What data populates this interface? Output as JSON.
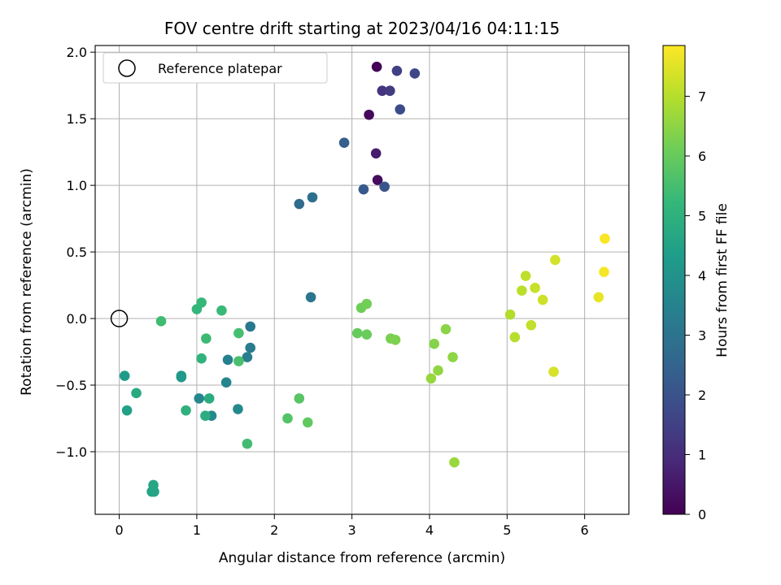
{
  "chart_data": {
    "type": "scatter",
    "title": "FOV centre drift starting at 2023/04/16 04:11:15",
    "xlabel": "Angular distance from reference (arcmin)",
    "ylabel": "Rotation from reference (arcmin)",
    "xlim": [
      -0.31,
      6.57
    ],
    "ylim": [
      -1.47,
      2.05
    ],
    "xticks": [
      0,
      1,
      2,
      3,
      4,
      5,
      6
    ],
    "xtick_labels": [
      "0",
      "1",
      "2",
      "3",
      "4",
      "5",
      "6"
    ],
    "yticks": [
      -1.0,
      -0.5,
      0.0,
      0.5,
      1.0,
      1.5,
      2.0
    ],
    "ytick_labels": [
      "−1.0",
      "−0.5",
      "0.0",
      "0.5",
      "1.0",
      "1.5",
      "2.0"
    ],
    "grid": true,
    "legend": {
      "position": "top-left",
      "entries": [
        "Reference platepar"
      ]
    },
    "reference_point": {
      "x": 0.0,
      "y": 0.0
    },
    "colorbar": {
      "label": "Hours from first FF file",
      "colormap": "viridis",
      "range": [
        0,
        7.85
      ],
      "ticks": [
        0,
        1,
        2,
        3,
        4,
        5,
        6,
        7
      ],
      "tick_labels": [
        "0",
        "1",
        "2",
        "3",
        "4",
        "5",
        "6",
        "7"
      ]
    },
    "points": [
      {
        "x": 3.32,
        "y": 1.89,
        "hours": 0.05
      },
      {
        "x": 3.22,
        "y": 1.53,
        "hours": 0.15
      },
      {
        "x": 3.33,
        "y": 1.04,
        "hours": 0.25
      },
      {
        "x": 3.31,
        "y": 1.24,
        "hours": 0.6
      },
      {
        "x": 3.39,
        "y": 1.71,
        "hours": 1.2
      },
      {
        "x": 3.49,
        "y": 1.71,
        "hours": 1.35
      },
      {
        "x": 3.58,
        "y": 1.86,
        "hours": 1.5
      },
      {
        "x": 3.81,
        "y": 1.84,
        "hours": 1.65
      },
      {
        "x": 3.62,
        "y": 1.57,
        "hours": 1.8
      },
      {
        "x": 3.42,
        "y": 0.99,
        "hours": 2.05
      },
      {
        "x": 3.15,
        "y": 0.97,
        "hours": 2.2
      },
      {
        "x": 2.9,
        "y": 1.32,
        "hours": 2.35
      },
      {
        "x": 2.32,
        "y": 0.86,
        "hours": 2.75
      },
      {
        "x": 2.49,
        "y": 0.91,
        "hours": 2.9
      },
      {
        "x": 2.47,
        "y": 0.16,
        "hours": 3.05
      },
      {
        "x": 1.69,
        "y": -0.06,
        "hours": 3.15
      },
      {
        "x": 1.69,
        "y": -0.22,
        "hours": 3.25
      },
      {
        "x": 1.65,
        "y": -0.29,
        "hours": 3.35
      },
      {
        "x": 1.4,
        "y": -0.31,
        "hours": 3.45
      },
      {
        "x": 1.38,
        "y": -0.48,
        "hours": 3.55
      },
      {
        "x": 1.03,
        "y": -0.6,
        "hours": 3.65
      },
      {
        "x": 1.19,
        "y": -0.73,
        "hours": 3.75
      },
      {
        "x": 1.53,
        "y": -0.68,
        "hours": 3.7
      },
      {
        "x": 0.8,
        "y": -0.43,
        "hours": 4.2
      },
      {
        "x": 0.8,
        "y": -0.44,
        "hours": 4.25
      },
      {
        "x": 0.07,
        "y": -0.43,
        "hours": 4.3
      },
      {
        "x": 0.1,
        "y": -0.69,
        "hours": 4.45
      },
      {
        "x": 0.42,
        "y": -1.3,
        "hours": 4.55
      },
      {
        "x": 0.45,
        "y": -1.3,
        "hours": 4.6
      },
      {
        "x": 0.44,
        "y": -1.25,
        "hours": 4.65
      },
      {
        "x": 0.22,
        "y": -0.56,
        "hours": 4.75
      },
      {
        "x": 1.16,
        "y": -0.6,
        "hours": 4.85
      },
      {
        "x": 1.11,
        "y": -0.73,
        "hours": 4.9
      },
      {
        "x": 0.86,
        "y": -0.69,
        "hours": 5.0
      },
      {
        "x": 1.06,
        "y": -0.3,
        "hours": 5.1
      },
      {
        "x": 1.0,
        "y": 0.07,
        "hours": 5.15
      },
      {
        "x": 1.06,
        "y": 0.12,
        "hours": 5.25
      },
      {
        "x": 1.32,
        "y": 0.06,
        "hours": 5.3
      },
      {
        "x": 1.12,
        "y": -0.15,
        "hours": 5.35
      },
      {
        "x": 0.54,
        "y": -0.02,
        "hours": 5.4
      },
      {
        "x": 1.65,
        "y": -0.94,
        "hours": 5.45
      },
      {
        "x": 1.54,
        "y": -0.11,
        "hours": 5.5
      },
      {
        "x": 1.54,
        "y": -0.32,
        "hours": 5.55
      },
      {
        "x": 2.17,
        "y": -0.75,
        "hours": 5.7
      },
      {
        "x": 2.32,
        "y": -0.6,
        "hours": 5.8
      },
      {
        "x": 2.43,
        "y": -0.78,
        "hours": 5.9
      },
      {
        "x": 3.07,
        "y": -0.11,
        "hours": 6.0
      },
      {
        "x": 3.19,
        "y": -0.12,
        "hours": 6.05
      },
      {
        "x": 3.12,
        "y": 0.08,
        "hours": 6.1
      },
      {
        "x": 3.19,
        "y": 0.11,
        "hours": 6.15
      },
      {
        "x": 3.5,
        "y": -0.15,
        "hours": 6.25
      },
      {
        "x": 3.56,
        "y": -0.16,
        "hours": 6.3
      },
      {
        "x": 4.06,
        "y": -0.19,
        "hours": 6.4
      },
      {
        "x": 4.21,
        "y": -0.08,
        "hours": 6.45
      },
      {
        "x": 4.3,
        "y": -0.29,
        "hours": 6.5
      },
      {
        "x": 4.11,
        "y": -0.39,
        "hours": 6.55
      },
      {
        "x": 4.02,
        "y": -0.45,
        "hours": 6.6
      },
      {
        "x": 4.32,
        "y": -1.08,
        "hours": 6.65
      },
      {
        "x": 5.04,
        "y": 0.03,
        "hours": 6.95
      },
      {
        "x": 5.1,
        "y": -0.14,
        "hours": 7.0
      },
      {
        "x": 5.19,
        "y": 0.21,
        "hours": 7.05
      },
      {
        "x": 5.24,
        "y": 0.32,
        "hours": 7.1
      },
      {
        "x": 5.31,
        "y": -0.05,
        "hours": 7.15
      },
      {
        "x": 5.36,
        "y": 0.23,
        "hours": 7.2
      },
      {
        "x": 5.46,
        "y": 0.14,
        "hours": 7.25
      },
      {
        "x": 5.62,
        "y": 0.44,
        "hours": 7.35
      },
      {
        "x": 5.6,
        "y": -0.4,
        "hours": 7.4
      },
      {
        "x": 6.18,
        "y": 0.16,
        "hours": 7.6
      },
      {
        "x": 6.25,
        "y": 0.35,
        "hours": 7.75
      },
      {
        "x": 6.26,
        "y": 0.6,
        "hours": 7.8
      }
    ]
  }
}
